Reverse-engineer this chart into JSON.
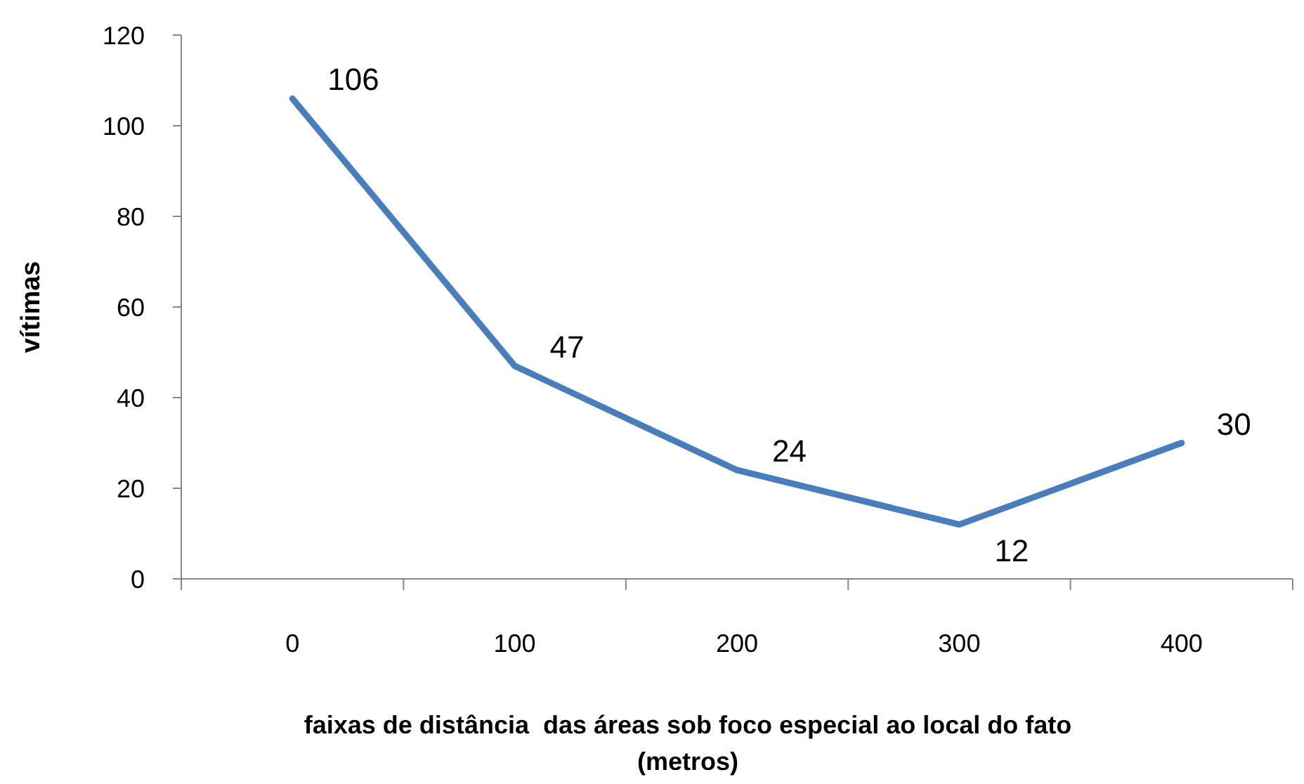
{
  "chart_data": {
    "type": "line",
    "xlabel": "faixas de distância  das áreas sob foco especial ao local do fato (metros)",
    "ylabel": "vítimas",
    "categories": [
      "0",
      "100",
      "200",
      "300",
      "400"
    ],
    "series": [
      {
        "color": "#4a7ebb",
        "values": [
          106,
          47,
          24,
          12,
          30
        ]
      }
    ],
    "ylim": [
      0,
      120
    ],
    "yticks": [
      0,
      20,
      40,
      60,
      80,
      100,
      120
    ],
    "data_labels": true,
    "grid": false,
    "marker": "none",
    "line_style": "solid"
  }
}
